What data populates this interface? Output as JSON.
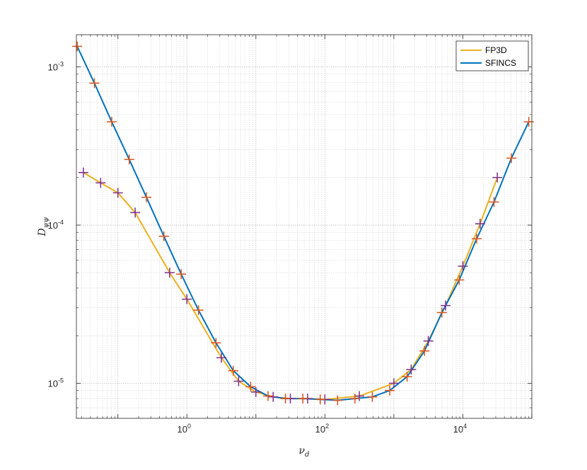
{
  "chart_data": {
    "type": "line",
    "xscale": "log",
    "yscale": "log",
    "xlim": [
      0.025,
      100000
    ],
    "ylim": [
      6e-06,
      0.0016
    ],
    "grid": true,
    "minor_grid": true,
    "legend_position": "top-right",
    "xlabel": {
      "symbol": "ν",
      "sub": "d"
    },
    "ylabel": {
      "symbol": "D",
      "sub": "ψψ"
    },
    "x_ticks": [
      {
        "value": 1,
        "base": "10",
        "exp": "0"
      },
      {
        "value": 100,
        "base": "10",
        "exp": "2"
      },
      {
        "value": 10000,
        "base": "10",
        "exp": "4"
      }
    ],
    "y_ticks": [
      {
        "value": 1e-05,
        "base": "10",
        "exp": "-5"
      },
      {
        "value": 0.0001,
        "base": "10",
        "exp": "-4"
      },
      {
        "value": 0.001,
        "base": "10",
        "exp": "-3"
      }
    ],
    "series": [
      {
        "name": "FP3D",
        "color": "#EDB120",
        "marker": "+",
        "marker_color": "#7E2F8E",
        "x": [
          0.0316,
          0.0562,
          0.1,
          0.178,
          0.562,
          1.0,
          3.16,
          5.62,
          10,
          17.8,
          31.6,
          56.2,
          100,
          316,
          1000,
          1780,
          3160,
          5620,
          10000,
          17800,
          31600
        ],
        "y": [
          0.000215,
          0.000185,
          0.00016,
          0.00012,
          5e-05,
          3.4e-05,
          1.45e-05,
          1.03e-05,
          8.8e-06,
          8.2e-06,
          8e-06,
          8e-06,
          7.9e-06,
          8.3e-06,
          1e-05,
          1.22e-05,
          1.85e-05,
          3.1e-05,
          5.5e-05,
          0.000102,
          0.0002
        ]
      },
      {
        "name": "SFINCS",
        "color": "#0072BD",
        "marker": "+",
        "marker_color": "#D95319",
        "x": [
          0.0257,
          0.0456,
          0.0813,
          0.146,
          0.259,
          0.464,
          0.826,
          1.47,
          2.64,
          4.71,
          8.41,
          15,
          26.8,
          47.9,
          85.6,
          153,
          273,
          487,
          871,
          1556,
          2778,
          4964,
          8867,
          15840,
          28290,
          50540,
          90270
        ],
        "y": [
          0.00135,
          0.00079,
          0.00045,
          0.00026,
          0.00015,
          8.5e-05,
          4.9e-05,
          2.9e-05,
          1.8e-05,
          1.2e-05,
          9.5e-06,
          8.3e-06,
          8e-06,
          8e-06,
          7.9e-06,
          7.8e-06,
          8e-06,
          8.2e-06,
          9e-06,
          1.1e-05,
          1.6e-05,
          2.8e-05,
          4.5e-05,
          8.2e-05,
          0.00014,
          0.000265,
          0.00045
        ]
      }
    ]
  }
}
